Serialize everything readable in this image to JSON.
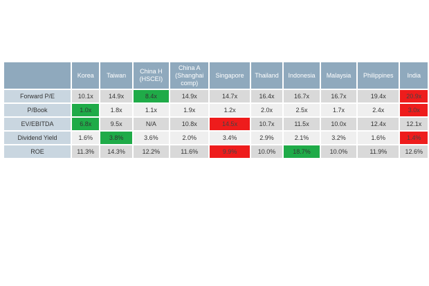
{
  "chart_data": {
    "type": "table",
    "columns": [
      "Korea",
      "Taiwan",
      "China H (HSCEI)",
      "China A (Shanghai comp)",
      "Singapore",
      "Thailand",
      "Indonesia",
      "Malaysia",
      "Philippines",
      "India"
    ],
    "header_lines": [
      [
        "Korea"
      ],
      [
        "Taiwan"
      ],
      [
        "China H",
        "(HSCEI)"
      ],
      [
        "China A",
        "(Shanghai",
        "comp)"
      ],
      [
        "Singapore"
      ],
      [
        "Thailand"
      ],
      [
        "Indonesia"
      ],
      [
        "Malaysia"
      ],
      [
        "Philippines"
      ],
      [
        "India"
      ]
    ],
    "rows": [
      {
        "label": "Forward P/E",
        "cells": [
          "10.1x",
          "14.9x",
          "8.4x",
          "14.9x",
          "14.7x",
          "16.4x",
          "16.7x",
          "16.7x",
          "19.4x",
          "20.9x"
        ],
        "highlights": {
          "green": [
            2
          ],
          "red": [
            9
          ]
        }
      },
      {
        "label": "P/Book",
        "cells": [
          "1.0x",
          "1.8x",
          "1.1x",
          "1.9x",
          "1.2x",
          "2.0x",
          "2.5x",
          "1.7x",
          "2.4x",
          "3.0x"
        ],
        "highlights": {
          "green": [
            0
          ],
          "red": [
            9
          ]
        }
      },
      {
        "label": "EV/EBITDA",
        "cells": [
          "6.8x",
          "9.5x",
          "N/A",
          "10.8x",
          "14.5x",
          "10.7x",
          "11.5x",
          "10.0x",
          "12.4x",
          "12.1x"
        ],
        "highlights": {
          "green": [
            0
          ],
          "red": [
            4
          ]
        }
      },
      {
        "label": "Dividend Yield",
        "cells": [
          "1.6%",
          "3.8%",
          "3.6%",
          "2.0%",
          "3.4%",
          "2.9%",
          "2.1%",
          "3.2%",
          "1.6%",
          "1.4%"
        ],
        "highlights": {
          "green": [
            1
          ],
          "red": [
            9
          ]
        }
      },
      {
        "label": "ROE",
        "cells": [
          "11.3%",
          "14.3%",
          "12.2%",
          "11.6%",
          "9.9%",
          "10.0%",
          "18.7%",
          "10.0%",
          "11.9%",
          "12.6%"
        ],
        "highlights": {
          "green": [
            6
          ],
          "red": [
            4
          ]
        }
      }
    ]
  },
  "colors": {
    "header_bg": "#8fa9bd",
    "row_label_bg": "#c9d6e0",
    "cell_odd": "#d9d9d9",
    "cell_even": "#efefef",
    "best": "#1fab48",
    "worst": "#ee1c1c"
  }
}
